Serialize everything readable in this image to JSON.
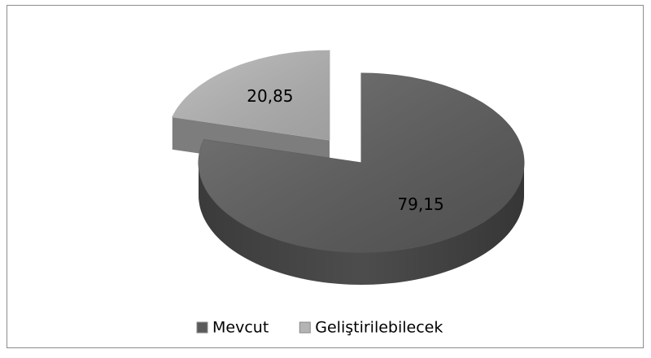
{
  "chart_data": {
    "type": "pie",
    "categories": [
      "Mevcut",
      "Geliştirilebilecek"
    ],
    "values": [
      79.15,
      20.85
    ],
    "value_labels": [
      "79,15",
      "20,85"
    ],
    "colors": [
      "#5a5a5a",
      "#b4b4b4"
    ],
    "exploded": [
      false,
      true
    ],
    "legend": "bottom",
    "3d": true
  }
}
